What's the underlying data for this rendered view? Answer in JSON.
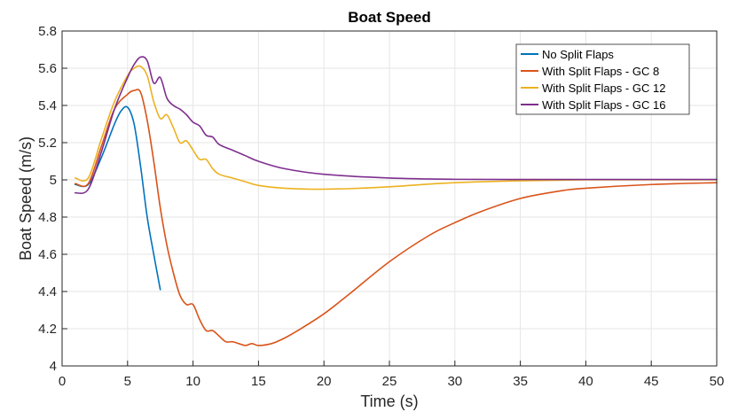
{
  "chart_data": {
    "type": "line",
    "title": "Boat Speed",
    "xlabel": "Time (s)",
    "ylabel": "Boat Speed (m/s)",
    "xlim": [
      0,
      50
    ],
    "ylim": [
      4,
      5.8
    ],
    "xticks": [
      0,
      5,
      10,
      15,
      20,
      25,
      30,
      35,
      40,
      45,
      50
    ],
    "yticks": [
      4,
      4.2,
      4.4,
      4.6,
      4.8,
      5,
      5.2,
      5.4,
      5.6,
      5.8
    ],
    "grid": true,
    "legend_position": "top-right",
    "series": [
      {
        "name": "No Split Flaps",
        "color": "#0072BD",
        "x": [
          1,
          2,
          3,
          4,
          4.5,
          5,
          5.5,
          6,
          6.5,
          7,
          7.5
        ],
        "y": [
          4.975,
          4.975,
          5.12,
          5.3,
          5.37,
          5.39,
          5.3,
          5.07,
          4.8,
          4.6,
          4.41
        ]
      },
      {
        "name": "With Split Flaps - GC 8",
        "color": "#D95319",
        "x": [
          1,
          2,
          3,
          4,
          5,
          5.5,
          6,
          6.5,
          7,
          7.5,
          8,
          8.5,
          9,
          9.5,
          10,
          10.5,
          11,
          11.5,
          12,
          12.5,
          13,
          13.5,
          14,
          14.5,
          15,
          16,
          17,
          18,
          20,
          22,
          25,
          28,
          30,
          32,
          35,
          38,
          40,
          45,
          50
        ],
        "y": [
          4.98,
          4.98,
          5.18,
          5.38,
          5.46,
          5.48,
          5.47,
          5.32,
          5.1,
          4.85,
          4.65,
          4.5,
          4.38,
          4.33,
          4.33,
          4.25,
          4.19,
          4.19,
          4.16,
          4.13,
          4.13,
          4.12,
          4.11,
          4.12,
          4.11,
          4.12,
          4.15,
          4.19,
          4.28,
          4.39,
          4.56,
          4.7,
          4.77,
          4.83,
          4.9,
          4.94,
          4.955,
          4.975,
          4.985
        ]
      },
      {
        "name": "With Split Flaps - GC 12",
        "color": "#EDB120",
        "x": [
          1,
          2,
          3,
          4,
          5,
          5.5,
          6,
          6.5,
          7,
          7.5,
          8,
          8.5,
          9,
          9.5,
          10,
          10.5,
          11,
          11.5,
          12,
          13,
          14,
          15,
          17,
          19,
          20,
          22,
          25,
          30,
          35,
          40,
          45,
          50
        ],
        "y": [
          5.01,
          5.01,
          5.22,
          5.42,
          5.56,
          5.6,
          5.61,
          5.56,
          5.42,
          5.33,
          5.35,
          5.28,
          5.2,
          5.21,
          5.16,
          5.11,
          5.11,
          5.06,
          5.03,
          5.01,
          4.99,
          4.97,
          4.955,
          4.95,
          4.95,
          4.953,
          4.963,
          4.985,
          4.995,
          5.0,
          5.0,
          5.0
        ]
      },
      {
        "name": "With Split Flaps - GC 16",
        "color": "#7E2F8E",
        "x": [
          1,
          2,
          3,
          4,
          5,
          5.5,
          6,
          6.5,
          7,
          7.5,
          8,
          8.5,
          9,
          9.5,
          10,
          10.5,
          11,
          11.5,
          12,
          13,
          14,
          15,
          17,
          20,
          25,
          30,
          35,
          40,
          45,
          50
        ],
        "y": [
          4.93,
          4.95,
          5.15,
          5.38,
          5.55,
          5.62,
          5.66,
          5.64,
          5.52,
          5.55,
          5.44,
          5.4,
          5.38,
          5.35,
          5.31,
          5.29,
          5.24,
          5.23,
          5.19,
          5.16,
          5.13,
          5.1,
          5.06,
          5.03,
          5.01,
          5.003,
          5.002,
          5.002,
          5.002,
          5.002
        ]
      }
    ]
  }
}
